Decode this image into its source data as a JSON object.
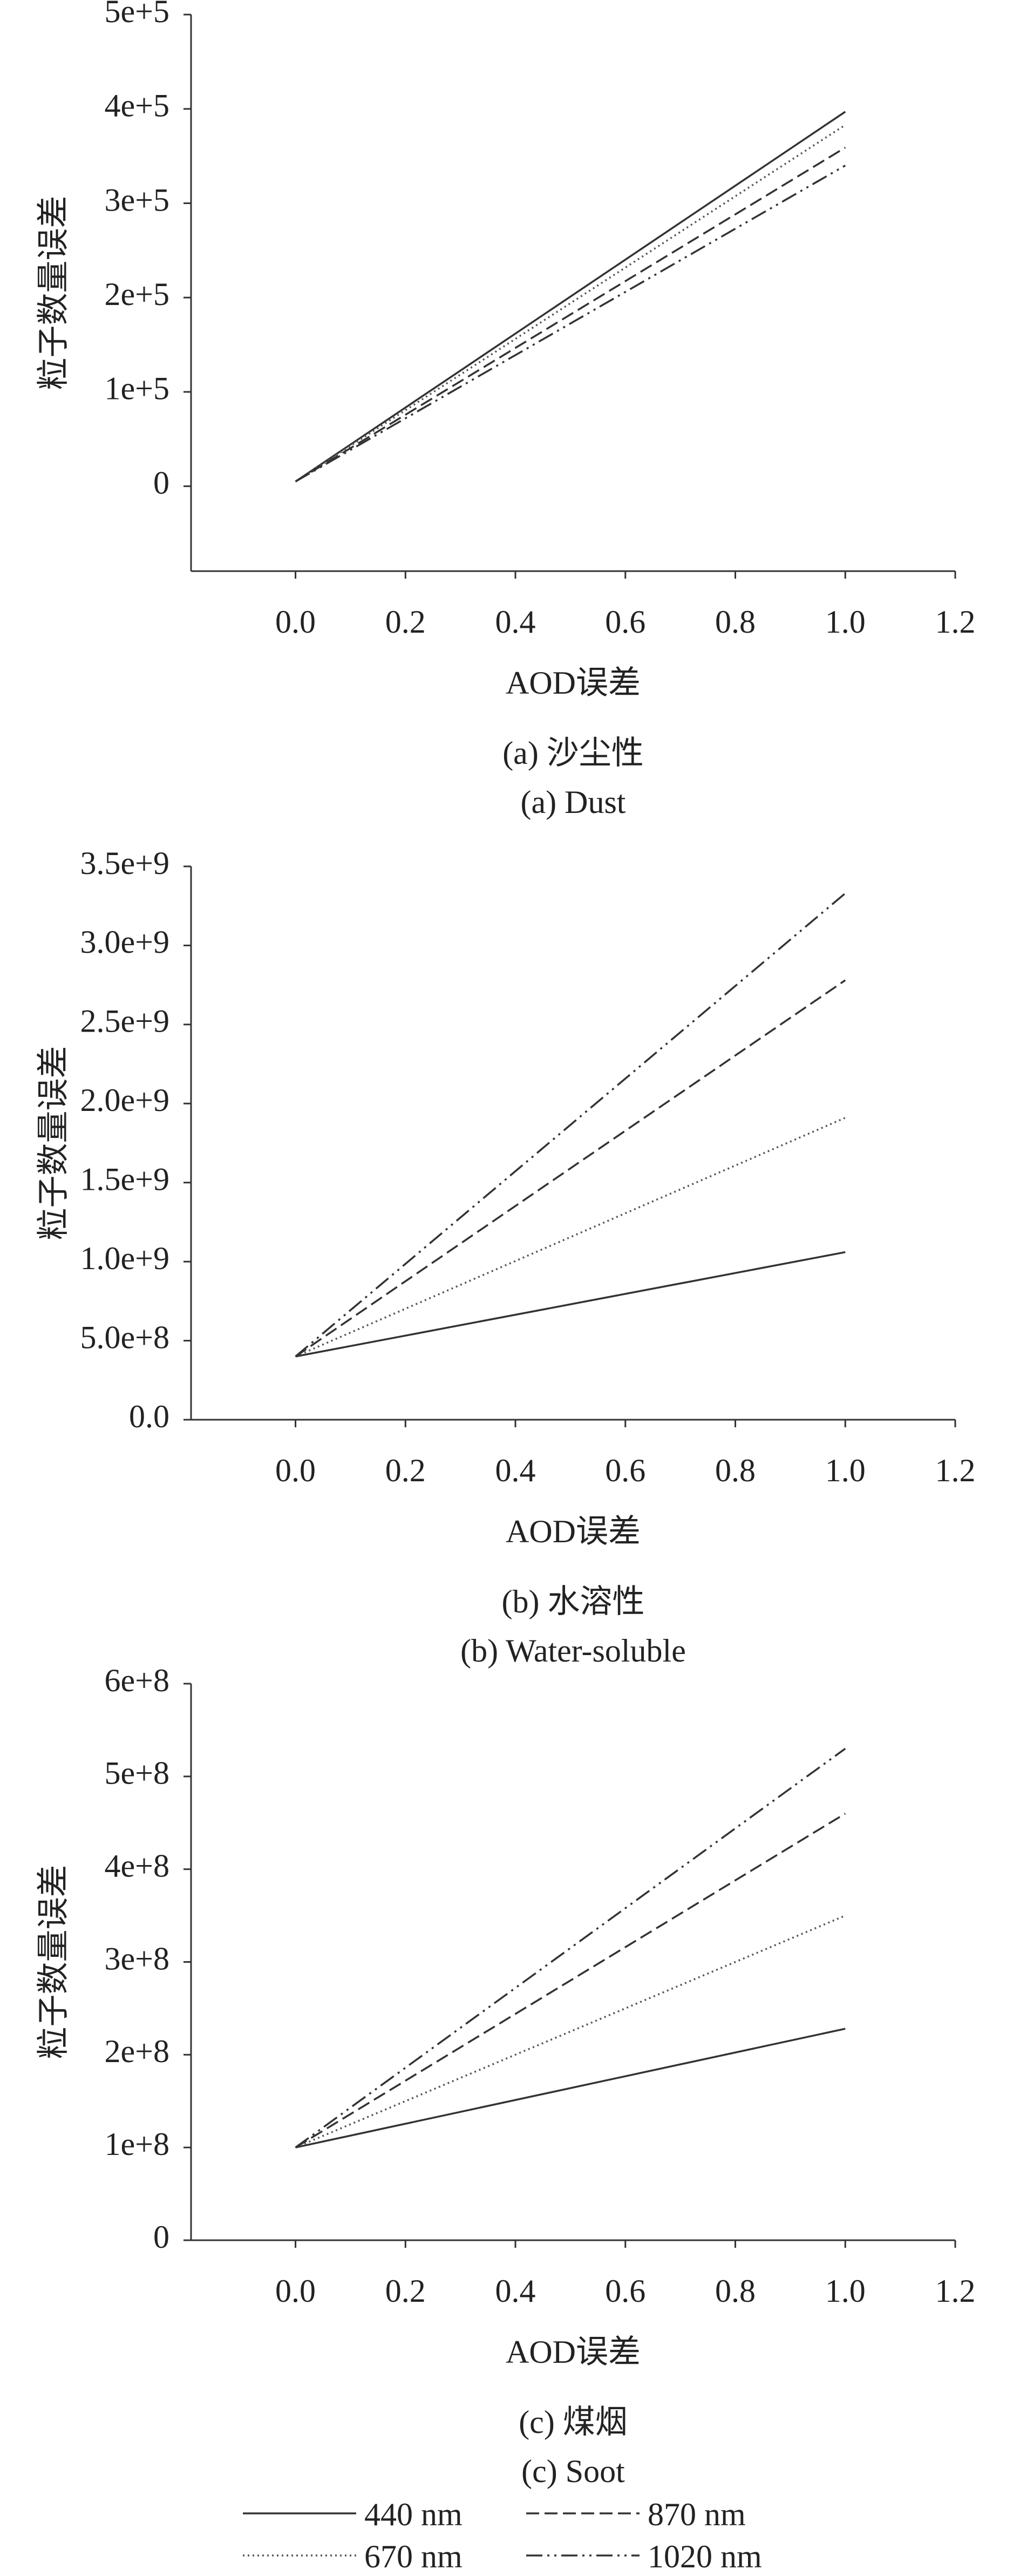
{
  "chart_data": [
    {
      "type": "line",
      "ylabel": "粒子数量误差",
      "xlabel": "AOD误差",
      "caption": [
        "(a) 沙尘性",
        "(a) Dust"
      ],
      "xlim": [
        -0.19,
        1.2
      ],
      "xticks": [
        {
          "value": 0,
          "label": "0.0"
        },
        0.2,
        0.4,
        0.6,
        0.8,
        {
          "value": 1,
          "label": "1.0"
        },
        1.2
      ],
      "ylim": [
        -90000,
        500000
      ],
      "yticks": [
        0,
        {
          "value": 100000,
          "label": "1e+5"
        },
        {
          "value": 200000,
          "label": "2e+5"
        },
        {
          "value": 300000,
          "label": "3e+5"
        },
        {
          "value": 400000,
          "label": "4e+5"
        },
        {
          "value": 500000,
          "label": "5e+5"
        }
      ],
      "x": [
        0,
        1
      ],
      "series": [
        {
          "name": "440 nm",
          "color": "#333333",
          "dash": "solid",
          "values": [
            5000,
            397000
          ]
        },
        {
          "name": "670 nm",
          "color": "#555555",
          "dash": "dotted",
          "values": [
            5000,
            383000
          ]
        },
        {
          "name": "870 nm",
          "color": "#333333",
          "dash": "dashed",
          "values": [
            5000,
            359000
          ]
        },
        {
          "name": "1020 nm",
          "color": "#333333",
          "dash": "dashdotdot",
          "values": [
            5000,
            340000
          ]
        }
      ]
    },
    {
      "type": "line",
      "ylabel": "粒子数量误差",
      "xlabel": "AOD误差",
      "caption": [
        "(b) 水溶性",
        "(b) Water-soluble"
      ],
      "xlim": [
        -0.19,
        1.2
      ],
      "xticks": [
        {
          "value": 0,
          "label": "0.0"
        },
        0.2,
        0.4,
        0.6,
        0.8,
        {
          "value": 1,
          "label": "1.0"
        },
        1.2
      ],
      "ylim": [
        0,
        3500000000
      ],
      "yticks": [
        {
          "value": 0,
          "label": "0.0"
        },
        {
          "value": 500000000,
          "label": "5.0e+8"
        },
        {
          "value": 1000000000,
          "label": "1.0e+9"
        },
        {
          "value": 1500000000,
          "label": "1.5e+9"
        },
        {
          "value": 2000000000,
          "label": "2.0e+9"
        },
        {
          "value": 2500000000,
          "label": "2.5e+9"
        },
        {
          "value": 3000000000,
          "label": "3.0e+9"
        },
        {
          "value": 3500000000,
          "label": "3.5e+9"
        }
      ],
      "x": [
        0,
        1
      ],
      "series": [
        {
          "name": "440 nm",
          "color": "#333333",
          "dash": "solid",
          "values": [
            400000000,
            1060000000
          ]
        },
        {
          "name": "670 nm",
          "color": "#555555",
          "dash": "dotted",
          "values": [
            400000000,
            1910000000
          ]
        },
        {
          "name": "870 nm",
          "color": "#333333",
          "dash": "dashed",
          "values": [
            400000000,
            2780000000
          ]
        },
        {
          "name": "1020 nm",
          "color": "#333333",
          "dash": "dashdotdot",
          "values": [
            400000000,
            3330000000
          ]
        }
      ]
    },
    {
      "type": "line",
      "ylabel": "粒子数量误差",
      "xlabel": "AOD误差",
      "caption": [
        "(c) 煤烟",
        "(c) Soot"
      ],
      "xlim": [
        -0.19,
        1.2
      ],
      "xticks": [
        {
          "value": 0,
          "label": "0.0"
        },
        0.2,
        0.4,
        0.6,
        0.8,
        {
          "value": 1,
          "label": "1.0"
        },
        1.2
      ],
      "ylim": [
        0,
        600000000
      ],
      "yticks": [
        0,
        {
          "value": 100000000,
          "label": "1e+8"
        },
        {
          "value": 200000000,
          "label": "2e+8"
        },
        {
          "value": 300000000,
          "label": "3e+8"
        },
        {
          "value": 400000000,
          "label": "4e+8"
        },
        {
          "value": 500000000,
          "label": "5e+8"
        },
        {
          "value": 600000000,
          "label": "6e+8"
        }
      ],
      "x": [
        0,
        1
      ],
      "series": [
        {
          "name": "440 nm",
          "color": "#333333",
          "dash": "solid",
          "values": [
            100000000,
            228000000
          ]
        },
        {
          "name": "670 nm",
          "color": "#555555",
          "dash": "dotted",
          "values": [
            100000000,
            350000000
          ]
        },
        {
          "name": "870 nm",
          "color": "#333333",
          "dash": "dashed",
          "values": [
            100000000,
            460000000
          ]
        },
        {
          "name": "1020 nm",
          "color": "#333333",
          "dash": "dashdotdot",
          "values": [
            100000000,
            530000000
          ]
        }
      ]
    }
  ]
}
